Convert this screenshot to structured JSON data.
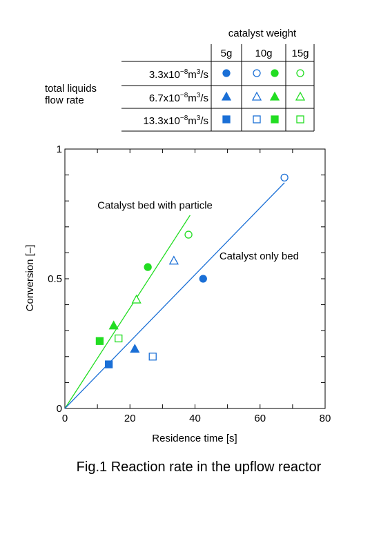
{
  "legend_table": {
    "header": "catalyst weight",
    "columns": [
      "5g",
      "10g",
      "15g"
    ],
    "row_group_label_line1": "total liquids",
    "row_group_label_line2": "flow rate",
    "rows": [
      {
        "base": "3.3x10",
        "exp": "−8",
        "unit": "m",
        "unit_exp": "3",
        "tail": "/s",
        "marker": "circle"
      },
      {
        "base": "6.7x10",
        "exp": "−8",
        "unit": "m",
        "unit_exp": "3",
        "tail": "/s",
        "marker": "triangle"
      },
      {
        "base": "13.3x10",
        "exp": "−8",
        "unit": "m",
        "unit_exp": "3",
        "tail": "/s",
        "marker": "square"
      }
    ]
  },
  "colors": {
    "blue": "#1a6fd6",
    "green": "#22dd22",
    "axis": "#000000"
  },
  "chart_data": {
    "type": "scatter",
    "xlabel": "Residence time [s]",
    "ylabel": "Conversion [–]",
    "xlim": [
      0,
      80
    ],
    "ylim": [
      0,
      1
    ],
    "x_ticks": [
      0,
      20,
      40,
      60,
      80
    ],
    "y_ticks": [
      {
        "v": 0,
        "label": "0"
      },
      {
        "v": 0.5,
        "label": "0.5"
      },
      {
        "v": 1,
        "label": "1"
      }
    ],
    "grid": false,
    "series": [
      {
        "name": "5g",
        "color": "blue",
        "points": [
          {
            "x": 42.5,
            "y": 0.5,
            "marker": "circle",
            "filled": true
          },
          {
            "x": 21.5,
            "y": 0.23,
            "marker": "triangle",
            "filled": true
          },
          {
            "x": 13.5,
            "y": 0.17,
            "marker": "square",
            "filled": true
          }
        ]
      },
      {
        "name": "10g",
        "color": "blue",
        "points": [
          {
            "x": 67.5,
            "y": 0.89,
            "marker": "circle",
            "filled": false
          },
          {
            "x": 33.5,
            "y": 0.57,
            "marker": "triangle",
            "filled": false
          },
          {
            "x": 27,
            "y": 0.2,
            "marker": "square",
            "filled": false
          }
        ]
      },
      {
        "name": "10g",
        "color": "green",
        "points": [
          {
            "x": 25.5,
            "y": 0.545,
            "marker": "circle",
            "filled": true
          },
          {
            "x": 15,
            "y": 0.32,
            "marker": "triangle",
            "filled": true
          },
          {
            "x": 10.7,
            "y": 0.26,
            "marker": "square",
            "filled": true
          }
        ]
      },
      {
        "name": "15g",
        "color": "green",
        "points": [
          {
            "x": 38,
            "y": 0.67,
            "marker": "circle",
            "filled": false
          },
          {
            "x": 22,
            "y": 0.42,
            "marker": "triangle",
            "filled": false
          },
          {
            "x": 16.5,
            "y": 0.27,
            "marker": "square",
            "filled": false
          }
        ]
      }
    ],
    "fit_lines": [
      {
        "color": "green",
        "from": [
          0,
          0
        ],
        "to": [
          38.5,
          0.745
        ]
      },
      {
        "color": "blue",
        "from": [
          0,
          0
        ],
        "to": [
          67.5,
          0.87
        ]
      }
    ],
    "annotations": [
      {
        "text": "Catalyst bed with particle",
        "x": 10,
        "y": 0.77
      },
      {
        "text": "Catalyst only bed",
        "x": 47.5,
        "y": 0.575
      }
    ]
  },
  "caption": "Fig.1 Reaction rate in the upflow reactor"
}
